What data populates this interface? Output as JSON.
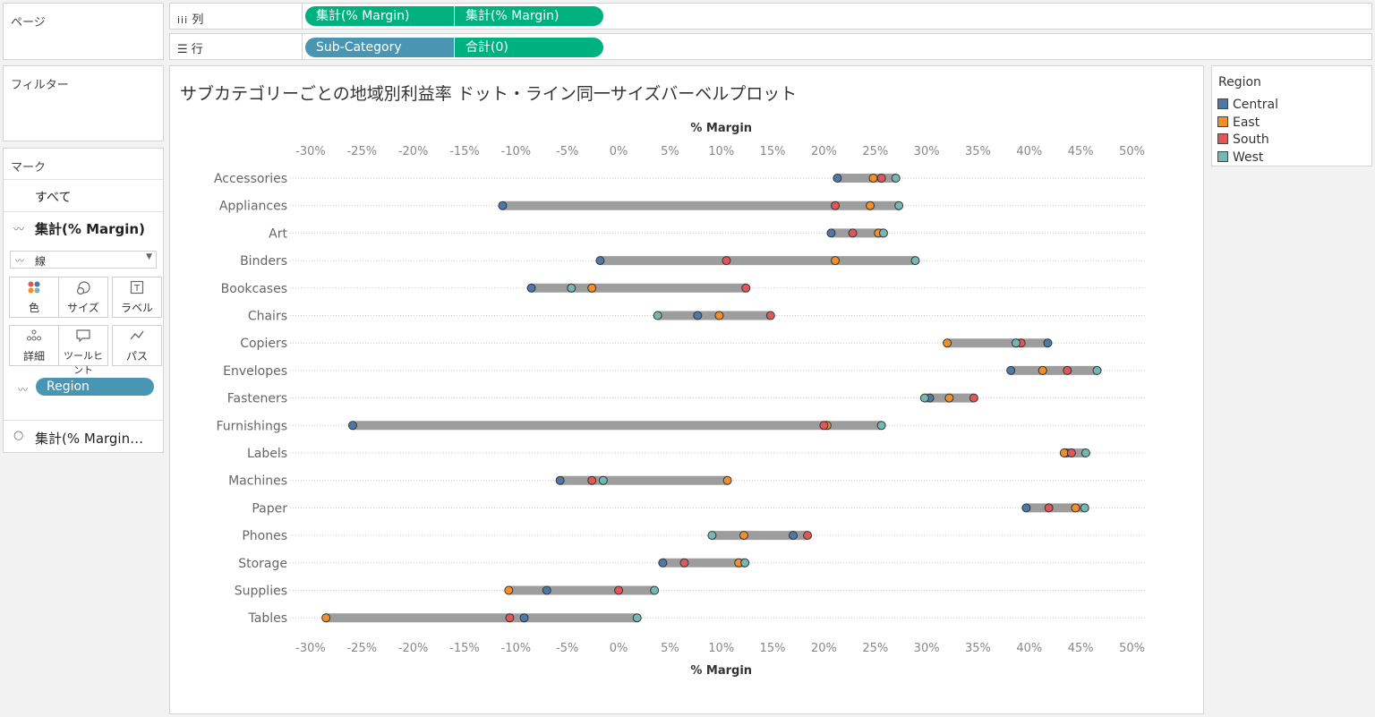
{
  "pages_panel": {
    "title": "ページ"
  },
  "filters_panel": {
    "title": "フィルター"
  },
  "columns_shelf": {
    "label": "列",
    "pills": [
      "集計(% Margin)",
      "集計(% Margin)"
    ]
  },
  "rows_shelf": {
    "label": "行",
    "pills": [
      "Sub-Category",
      "合計(0)"
    ]
  },
  "marks_panel": {
    "title": "マーク",
    "all_label": "すべて",
    "card1_label": "集計(% Margin)",
    "mark_type": "線",
    "buttons": [
      "色",
      "サイズ",
      "ラベル",
      "詳細",
      "ツールヒント",
      "パス"
    ],
    "region_pill": "Region",
    "card2_label": "集計(% Margin…"
  },
  "legend": {
    "title": "Region",
    "items": [
      {
        "name": "Central",
        "color": "#4e79a7"
      },
      {
        "name": "East",
        "color": "#f28e2b"
      },
      {
        "name": "South",
        "color": "#e15759"
      },
      {
        "name": "West",
        "color": "#76b7b2"
      }
    ]
  },
  "chart_title": "サブカテゴリーごとの地域別利益率 ドット・ライン同一サイズバーベルプロット",
  "chart_data": {
    "type": "scatter",
    "title": "サブカテゴリーごとの地域別利益率 ドット・ライン同一サイズバーベルプロット",
    "xlabel": "% Margin",
    "ylabel": "",
    "xlim": [
      -32,
      51
    ],
    "xticks": [
      -30,
      -25,
      -20,
      -15,
      -10,
      -5,
      0,
      5,
      10,
      15,
      20,
      25,
      30,
      35,
      40,
      45,
      50
    ],
    "xtick_labels": [
      "-30%",
      "-25%",
      "-20%",
      "-15%",
      "-10%",
      "-5%",
      "0%",
      "5%",
      "10%",
      "15%",
      "20%",
      "25%",
      "30%",
      "35%",
      "40%",
      "45%",
      "50%"
    ],
    "grid": true,
    "legend_position": "right",
    "categories": [
      "Accessories",
      "Appliances",
      "Art",
      "Binders",
      "Bookcases",
      "Chairs",
      "Copiers",
      "Envelopes",
      "Fasteners",
      "Furnishings",
      "Labels",
      "Machines",
      "Paper",
      "Phones",
      "Storage",
      "Supplies",
      "Tables"
    ],
    "series": [
      {
        "name": "Central",
        "color": "#4e79a7",
        "values": [
          21.3,
          -11.3,
          20.7,
          -1.8,
          -8.5,
          7.7,
          41.8,
          38.2,
          30.3,
          -25.9,
          43.6,
          -5.7,
          39.7,
          17.0,
          4.3,
          -7.0,
          -9.2
        ]
      },
      {
        "name": "East",
        "color": "#f28e2b",
        "values": [
          24.8,
          24.5,
          25.3,
          21.1,
          -2.6,
          9.8,
          32.0,
          41.3,
          32.2,
          20.3,
          43.4,
          10.6,
          44.5,
          12.2,
          11.7,
          -10.7,
          -28.5
        ]
      },
      {
        "name": "South",
        "color": "#e15759",
        "values": [
          25.6,
          21.1,
          22.8,
          10.5,
          12.4,
          14.8,
          39.2,
          43.7,
          34.6,
          20.0,
          44.1,
          -2.6,
          41.9,
          18.4,
          6.4,
          0.0,
          -10.6
        ]
      },
      {
        "name": "West",
        "color": "#76b7b2",
        "values": [
          27.0,
          27.3,
          25.8,
          28.9,
          -4.6,
          3.8,
          38.7,
          46.6,
          29.8,
          25.6,
          45.5,
          -1.5,
          45.4,
          9.1,
          12.3,
          3.5,
          1.8
        ]
      }
    ]
  }
}
